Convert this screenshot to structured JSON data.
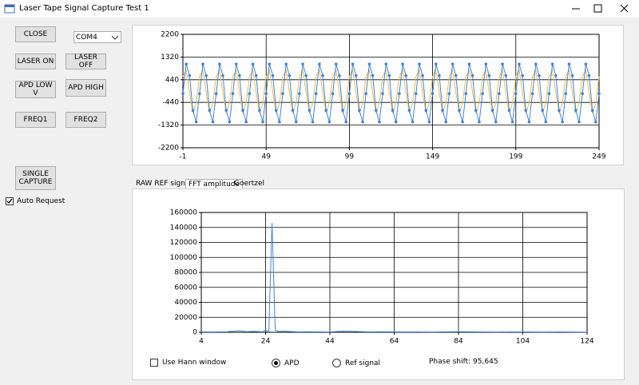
{
  "window": {
    "title": "Laser Tape Signal Capture Test 1"
  },
  "controls": {
    "close": "CLOSE",
    "port": "COM4",
    "laser_on": "LASER ON",
    "laser_off": "LASER OFF",
    "apd_low": "APD LOW V",
    "apd_high": "APD HIGH",
    "freq1": "FREQ1",
    "freq2": "FREQ2",
    "single_capture": [
      "SINGLE",
      "CAPTURE"
    ],
    "auto_request": "Auto Request"
  },
  "tabs": [
    "RAW REF signal",
    "FFT amplitude",
    "Goertzel"
  ],
  "options": {
    "hann": "Use Hann window",
    "apd": "APD",
    "ref": "Ref signal",
    "phase": "Phase shift: 95,645"
  },
  "chart_data": [
    {
      "type": "line",
      "grid": true,
      "x": [
        -1,
        1,
        3,
        5,
        7,
        9,
        11,
        13,
        15,
        17,
        19,
        21,
        23,
        25,
        27,
        29,
        31,
        33,
        35,
        37,
        39,
        41,
        43,
        45,
        47,
        49,
        51,
        53,
        55,
        57,
        59,
        61,
        63,
        65,
        67,
        69,
        71,
        73,
        75,
        77,
        79,
        81,
        83,
        85,
        87,
        89,
        91,
        93,
        95,
        97,
        99,
        101,
        103,
        105,
        107,
        109,
        111,
        113,
        115,
        117,
        119,
        121,
        123,
        125,
        127,
        129,
        131,
        133,
        135,
        137,
        139,
        141,
        143,
        145,
        147,
        149,
        151,
        153,
        155,
        157,
        159,
        161,
        163,
        165,
        167,
        169,
        171,
        173,
        175,
        177,
        179,
        181,
        183,
        185,
        187,
        189,
        191,
        193,
        195,
        197,
        199,
        201,
        203,
        205,
        207,
        209,
        211,
        213,
        215,
        217,
        219,
        221,
        223,
        225,
        227,
        229,
        231,
        233,
        235,
        237,
        239,
        241,
        243,
        245,
        247,
        249
      ],
      "series": [
        {
          "color": "#f2b84b",
          "markers": false,
          "values": [
            566,
            816,
            -61,
            -854,
            -466,
            566,
            816,
            -61,
            -854,
            -466,
            566,
            816,
            -61,
            -854,
            -466,
            566,
            816,
            -61,
            -854,
            -466,
            566,
            816,
            -61,
            -854,
            -466,
            566,
            816,
            -61,
            -854,
            -466,
            566,
            816,
            -61,
            -854,
            -466,
            566,
            816,
            -61,
            -854,
            -466,
            566,
            816,
            -61,
            -854,
            -466,
            566,
            816,
            -61,
            -854,
            -466,
            566,
            816,
            -61,
            -854,
            -466,
            566,
            816,
            -61,
            -854,
            -466,
            566,
            816,
            -61,
            -854,
            -466,
            566,
            816,
            -61,
            -854,
            -466,
            566,
            816,
            -61,
            -854,
            -466,
            566,
            816,
            -61,
            -854,
            -466,
            566,
            816,
            -61,
            -854,
            -466,
            566,
            816,
            -61,
            -854,
            -466,
            566,
            816,
            -61,
            -854,
            -466,
            566,
            816,
            -61,
            -854,
            -466,
            566,
            816,
            -61,
            -854,
            -466,
            566,
            816,
            -61,
            -854,
            -466,
            566,
            816,
            -61,
            -854,
            -466,
            566,
            816,
            -61,
            -854,
            -466,
            566,
            816,
            -61,
            -854,
            -466,
            566
          ]
        },
        {
          "color": "#3d85d8",
          "markers": true,
          "values": [
            -100,
            1050,
            600,
            -750,
            -1200,
            -100,
            1050,
            600,
            -750,
            -1200,
            -100,
            1050,
            600,
            -750,
            -1200,
            -100,
            1050,
            600,
            -750,
            -1200,
            -100,
            1050,
            600,
            -750,
            -1200,
            -100,
            1050,
            600,
            -750,
            -1200,
            -100,
            1050,
            600,
            -750,
            -1200,
            -100,
            1050,
            600,
            -750,
            -1200,
            -100,
            1050,
            600,
            -750,
            -1200,
            -100,
            1050,
            600,
            -750,
            -1200,
            -100,
            1050,
            600,
            -750,
            -1200,
            -100,
            1050,
            600,
            -750,
            -1200,
            -100,
            1050,
            600,
            -750,
            -1200,
            -100,
            1050,
            600,
            -750,
            -1200,
            -100,
            1050,
            600,
            -750,
            -1200,
            -100,
            1050,
            600,
            -750,
            -1200,
            -100,
            1050,
            600,
            -750,
            -1200,
            -100,
            1050,
            600,
            -750,
            -1200,
            -100,
            1050,
            600,
            -750,
            -1200,
            -100,
            1050,
            600,
            -750,
            -1200,
            -100,
            1050,
            600,
            -750,
            -1200,
            -100,
            1050,
            600,
            -750,
            -1200,
            -100,
            1050,
            600,
            -750,
            -1200,
            -100,
            1050,
            600,
            -750,
            -1200,
            -100,
            1050,
            600,
            -750,
            -1200,
            -100
          ]
        }
      ],
      "xlim": [
        -1,
        249
      ],
      "xticks": [
        -1,
        49,
        99,
        149,
        199,
        249
      ],
      "ylim": [
        -2200,
        2200
      ],
      "yticks": [
        -2200,
        -1320,
        -440,
        440,
        1320,
        2200
      ]
    },
    {
      "type": "line",
      "grid": true,
      "x": [
        4,
        8,
        12,
        14,
        16,
        18,
        20,
        22,
        23,
        24,
        25,
        26,
        27,
        28,
        30,
        34,
        38,
        44,
        48,
        52,
        56,
        60,
        64,
        70,
        76,
        84,
        90,
        96,
        104,
        110,
        116,
        124
      ],
      "series": [
        {
          "color": "#3d85d8",
          "markers": false,
          "values": [
            600,
            500,
            700,
            1500,
            2000,
            800,
            1200,
            900,
            400,
            3000,
            500,
            146000,
            3000,
            1000,
            1500,
            500,
            700,
            400,
            1500,
            1000,
            500,
            700,
            600,
            500,
            400,
            800,
            500,
            400,
            600,
            400,
            500,
            300
          ]
        }
      ],
      "xlim": [
        4,
        124
      ],
      "xticks": [
        4,
        24,
        44,
        64,
        84,
        104,
        124
      ],
      "ylim": [
        0,
        160000
      ],
      "yticks": [
        0,
        20000,
        40000,
        60000,
        80000,
        100000,
        120000,
        140000,
        160000
      ]
    }
  ]
}
